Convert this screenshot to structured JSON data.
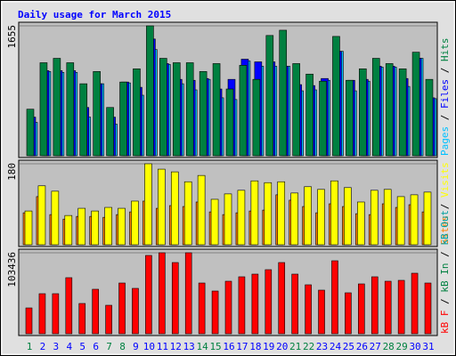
{
  "title": "Daily usage for March 2015",
  "legend_separator": " / ",
  "chart_data": [
    {
      "type": "bar",
      "categories": [
        "1",
        "2",
        "3",
        "4",
        "5",
        "6",
        "7",
        "8",
        "9",
        "10",
        "11",
        "12",
        "13",
        "14",
        "15",
        "16",
        "17",
        "18",
        "19",
        "20",
        "21",
        "22",
        "23",
        "24",
        "25",
        "26",
        "27",
        "28",
        "29",
        "30",
        "31"
      ],
      "category_colors": [
        "#008040",
        "#0000ff",
        "#0000ff",
        "#0000ff",
        "#0000ff",
        "#0000ff",
        "#008040",
        "#008040",
        "#0000ff",
        "#0000ff",
        "#0000ff",
        "#0000ff",
        "#0000ff",
        "#008040",
        "#008040",
        "#0000ff",
        "#0000ff",
        "#0000ff",
        "#0000ff",
        "#0000ff",
        "#008040",
        "#008040",
        "#0000ff",
        "#0000ff",
        "#0000ff",
        "#0000ff",
        "#0000ff",
        "#008040",
        "#008040",
        "#0000ff",
        "#0000ff"
      ],
      "ylim": [
        0,
        1655
      ],
      "yticks": [
        1655
      ],
      "series": [
        {
          "name": "Pages",
          "color": "#00c0ff",
          "values": [
            425,
            1073,
            1062,
            1062,
            492,
            917,
            402,
            928,
            771,
            1353,
            1163,
            917,
            839,
            973,
            738,
            716,
            1207,
            1140,
            1140,
            1140,
            827,
            839,
            961,
            1330,
            827,
            950,
            1129,
            1129,
            883,
            1241,
            727
          ]
        },
        {
          "name": "Files",
          "color": "#0000ff",
          "values": [
            492,
            1084,
            1084,
            1084,
            615,
            917,
            492,
            939,
            872,
            1487,
            1174,
            973,
            961,
            984,
            850,
            973,
            1230,
            1196,
            1196,
            1140,
            906,
            894,
            984,
            1330,
            961,
            973,
            1140,
            1140,
            984,
            1241,
            738
          ]
        },
        {
          "name": "Hits",
          "color": "#008040",
          "values": [
            593,
            1185,
            1241,
            1185,
            917,
            1073,
            615,
            939,
            1107,
            1655,
            1241,
            1185,
            1185,
            1073,
            1174,
            850,
            1152,
            973,
            1532,
            1599,
            1174,
            1040,
            950,
            1520,
            961,
            1107,
            1241,
            1174,
            1107,
            1319,
            973
          ]
        }
      ]
    },
    {
      "type": "bar",
      "ylim": [
        0,
        180
      ],
      "yticks": [
        180
      ],
      "series": [
        {
          "name": "Sites",
          "color": "#ff8000",
          "values": [
            71,
            107,
            67,
            57,
            63,
            63,
            61,
            67,
            73,
            97,
            81,
            87,
            85,
            95,
            73,
            67,
            71,
            75,
            77,
            111,
            99,
            85,
            71,
            91,
            85,
            69,
            67,
            91,
            83,
            89,
            73
          ]
        },
        {
          "name": "Visits",
          "color": "#ffff00",
          "values": [
            75,
            131,
            119,
            65,
            81,
            75,
            83,
            81,
            97,
            180,
            168,
            162,
            140,
            154,
            101,
            113,
            121,
            142,
            138,
            140,
            115,
            129,
            123,
            142,
            127,
            95,
            121,
            123,
            107,
            111,
            117
          ]
        }
      ]
    },
    {
      "type": "bar",
      "ylim": [
        0,
        103436
      ],
      "yticks": [
        103436
      ],
      "series": [
        {
          "name": "kB F",
          "color": "#ff0000",
          "values": [
            32964,
            51152,
            51152,
            71612,
            38648,
            56835,
            36374,
            64792,
            57972,
            100030,
            103436,
            90936,
            103436,
            64792,
            54562,
            67065,
            72749,
            76159,
            81842,
            90936,
            76159,
            62519,
            55698,
            93209,
            52288,
            63655,
            72749,
            67065,
            68202,
            77296,
            64792
          ]
        }
      ],
      "extra_legend": [
        {
          "name": "kB In",
          "color": "#008040"
        },
        {
          "name": "kB Out",
          "color": "#00a0a0"
        }
      ]
    }
  ]
}
